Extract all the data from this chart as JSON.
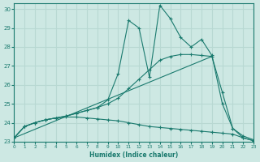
{
  "xlabel": "Humidex (Indice chaleur)",
  "bg_color": "#cde8e3",
  "line_color": "#1a7a6e",
  "grid_color": "#b8d8d2",
  "xlim": [
    0,
    23
  ],
  "ylim": [
    23,
    30.3
  ],
  "xticks": [
    0,
    1,
    2,
    3,
    4,
    5,
    6,
    7,
    8,
    9,
    10,
    11,
    12,
    13,
    14,
    15,
    16,
    17,
    18,
    19,
    20,
    21,
    22,
    23
  ],
  "yticks": [
    23,
    24,
    25,
    26,
    27,
    28,
    29,
    30
  ],
  "lines": [
    {
      "x": [
        0,
        1,
        2,
        3,
        4,
        5,
        6,
        7,
        8,
        9,
        10,
        11,
        12,
        13,
        14,
        15,
        16,
        17,
        18,
        19,
        20,
        21,
        22,
        23
      ],
      "y": [
        23.2,
        23.8,
        24.0,
        24.15,
        24.25,
        24.35,
        24.5,
        24.65,
        24.8,
        25.2,
        26.6,
        29.4,
        29.0,
        26.4,
        30.2,
        29.5,
        28.5,
        28.0,
        28.4,
        27.55,
        25.0,
        23.7,
        23.3,
        23.1
      ],
      "marker": true
    },
    {
      "x": [
        0,
        1,
        2,
        3,
        4,
        5,
        6,
        7,
        8,
        9,
        10,
        11,
        12,
        13,
        14,
        15,
        16,
        17,
        18,
        19,
        20,
        21,
        22,
        23
      ],
      "y": [
        23.2,
        23.8,
        24.0,
        24.15,
        24.25,
        24.35,
        24.5,
        24.65,
        24.8,
        25.0,
        25.3,
        25.8,
        26.3,
        26.8,
        27.3,
        27.5,
        27.6,
        27.6,
        27.55,
        27.5,
        25.6,
        23.7,
        23.2,
        23.05
      ],
      "marker": true
    },
    {
      "x": [
        0,
        19
      ],
      "y": [
        23.2,
        27.5
      ],
      "marker": false
    },
    {
      "x": [
        0,
        1,
        2,
        3,
        4,
        5,
        6,
        7,
        8,
        9,
        10,
        11,
        12,
        13,
        14,
        15,
        16,
        17,
        18,
        19,
        20,
        21,
        22,
        23
      ],
      "y": [
        23.2,
        23.8,
        24.0,
        24.15,
        24.25,
        24.3,
        24.3,
        24.25,
        24.2,
        24.15,
        24.1,
        24.0,
        23.9,
        23.8,
        23.75,
        23.7,
        23.65,
        23.6,
        23.55,
        23.5,
        23.45,
        23.4,
        23.2,
        23.05
      ],
      "marker": true
    }
  ]
}
